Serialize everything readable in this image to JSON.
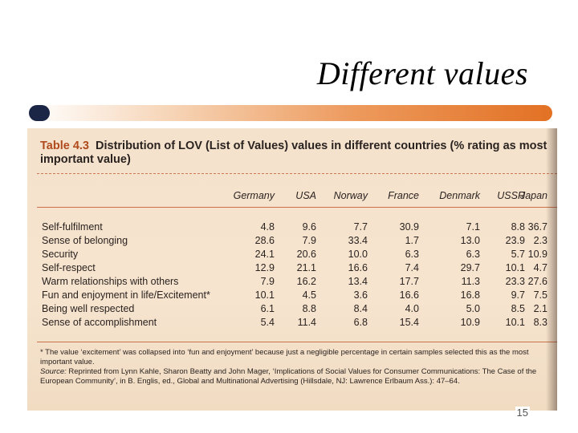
{
  "slide": {
    "title": "Different values",
    "page_number": "15"
  },
  "table": {
    "number": "Table 4.3",
    "caption": "Distribution of LOV (List of Values) values in different countries (% rating as most important value)",
    "columns": [
      "Germany",
      "USA",
      "Norway",
      "France",
      "Denmark",
      "USSR",
      "Japan"
    ],
    "rows": [
      {
        "label": "Self-fulfilment",
        "values": [
          "4.8",
          "9.6",
          "7.7",
          "30.9",
          "7.1",
          "8.8",
          "36.7"
        ]
      },
      {
        "label": "Sense of belonging",
        "values": [
          "28.6",
          "7.9",
          "33.4",
          "1.7",
          "13.0",
          "23.9",
          "2.3"
        ]
      },
      {
        "label": "Security",
        "values": [
          "24.1",
          "20.6",
          "10.0",
          "6.3",
          "6.3",
          "5.7",
          "10.9"
        ]
      },
      {
        "label": "Self-respect",
        "values": [
          "12.9",
          "21.1",
          "16.6",
          "7.4",
          "29.7",
          "10.1",
          "4.7"
        ]
      },
      {
        "label": "Warm relationships with others",
        "values": [
          "7.9",
          "16.2",
          "13.4",
          "17.7",
          "11.3",
          "23.3",
          "27.6"
        ]
      },
      {
        "label": "Fun and enjoyment in life/Excitement*",
        "values": [
          "10.1",
          "4.5",
          "3.6",
          "16.6",
          "16.8",
          "9.7",
          "7.5"
        ]
      },
      {
        "label": "Being well respected",
        "values": [
          "6.1",
          "8.8",
          "8.4",
          "4.0",
          "5.0",
          "8.5",
          "2.1"
        ]
      },
      {
        "label": "Sense of accomplishment",
        "values": [
          "5.4",
          "11.4",
          "6.8",
          "15.4",
          "10.9",
          "10.1",
          "8.3"
        ]
      }
    ],
    "footnote": "* The value ‘excitement’ was collapsed into ‘fun and enjoyment’ because just a negligible percentage in certain samples selected this as the most important value.",
    "source_label": "Source:",
    "source_text": "Reprinted from Lynn Kahle, Sharon Beatty and John Mager, ‘Implications of Social Values for Consumer Communications: The Case of the European Community’, in B. Englis, ed., Global and Multinational Advertising (Hillsdale, NJ: Lawrence Erlbaum Ass.): 47–64."
  }
}
